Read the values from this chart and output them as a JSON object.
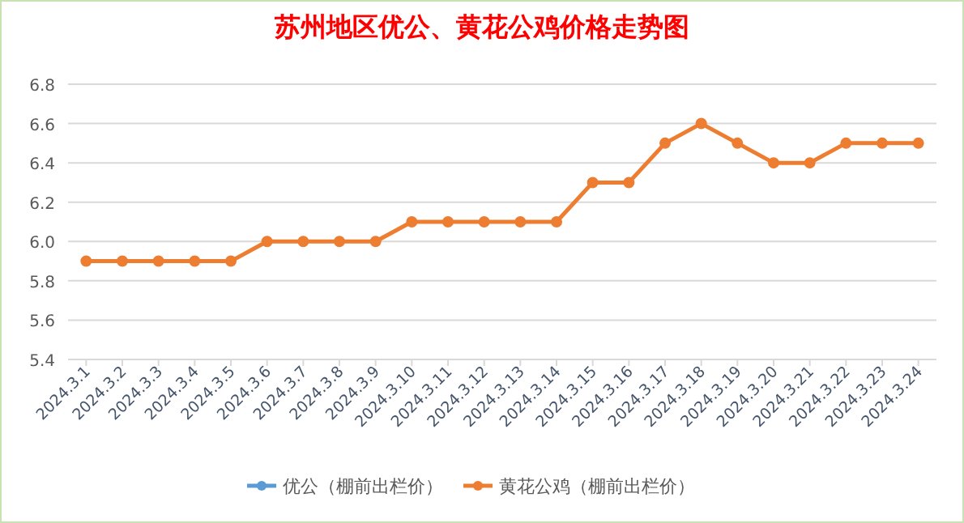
{
  "chart_data": {
    "type": "line",
    "title": "苏州地区优公、黄花公鸡价格走势图",
    "categories": [
      "2024.3.1",
      "2024.3.2",
      "2024.3.3",
      "2024.3.4",
      "2024.3.5",
      "2024.3.6",
      "2024.3.7",
      "2024.3.8",
      "2024.3.9",
      "2024.3.10",
      "2024.3.11",
      "2024.3.12",
      "2024.3.13",
      "2024.3.14",
      "2024.3.15",
      "2024.3.16",
      "2024.3.17",
      "2024.3.18",
      "2024.3.19",
      "2024.3.20",
      "2024.3.21",
      "2024.3.22",
      "2024.3.23",
      "2024.3.24"
    ],
    "series": [
      {
        "name": "优公（棚前出栏价）",
        "color": "#5b9bd5",
        "values": [
          null,
          null,
          null,
          null,
          null,
          null,
          null,
          null,
          null,
          null,
          null,
          null,
          null,
          null,
          null,
          null,
          null,
          null,
          null,
          null,
          null,
          null,
          null,
          null
        ]
      },
      {
        "name": "黄花公鸡（棚前出栏价）",
        "color": "#ed7d31",
        "values": [
          5.9,
          5.9,
          5.9,
          5.9,
          5.9,
          6.0,
          6.0,
          6.0,
          6.0,
          6.1,
          6.1,
          6.1,
          6.1,
          6.1,
          6.3,
          6.3,
          6.5,
          6.6,
          6.5,
          6.4,
          6.4,
          6.5,
          6.5,
          6.5
        ]
      }
    ],
    "ylim": [
      5.4,
      6.8
    ],
    "yticks": [
      5.4,
      5.6,
      5.8,
      {
        "value": 6,
        "label": "6.0"
      },
      6.2,
      6.4,
      6.6,
      6.8
    ],
    "grid": "y",
    "legend": "bottom",
    "marker": "circle",
    "line_style": "solid"
  }
}
